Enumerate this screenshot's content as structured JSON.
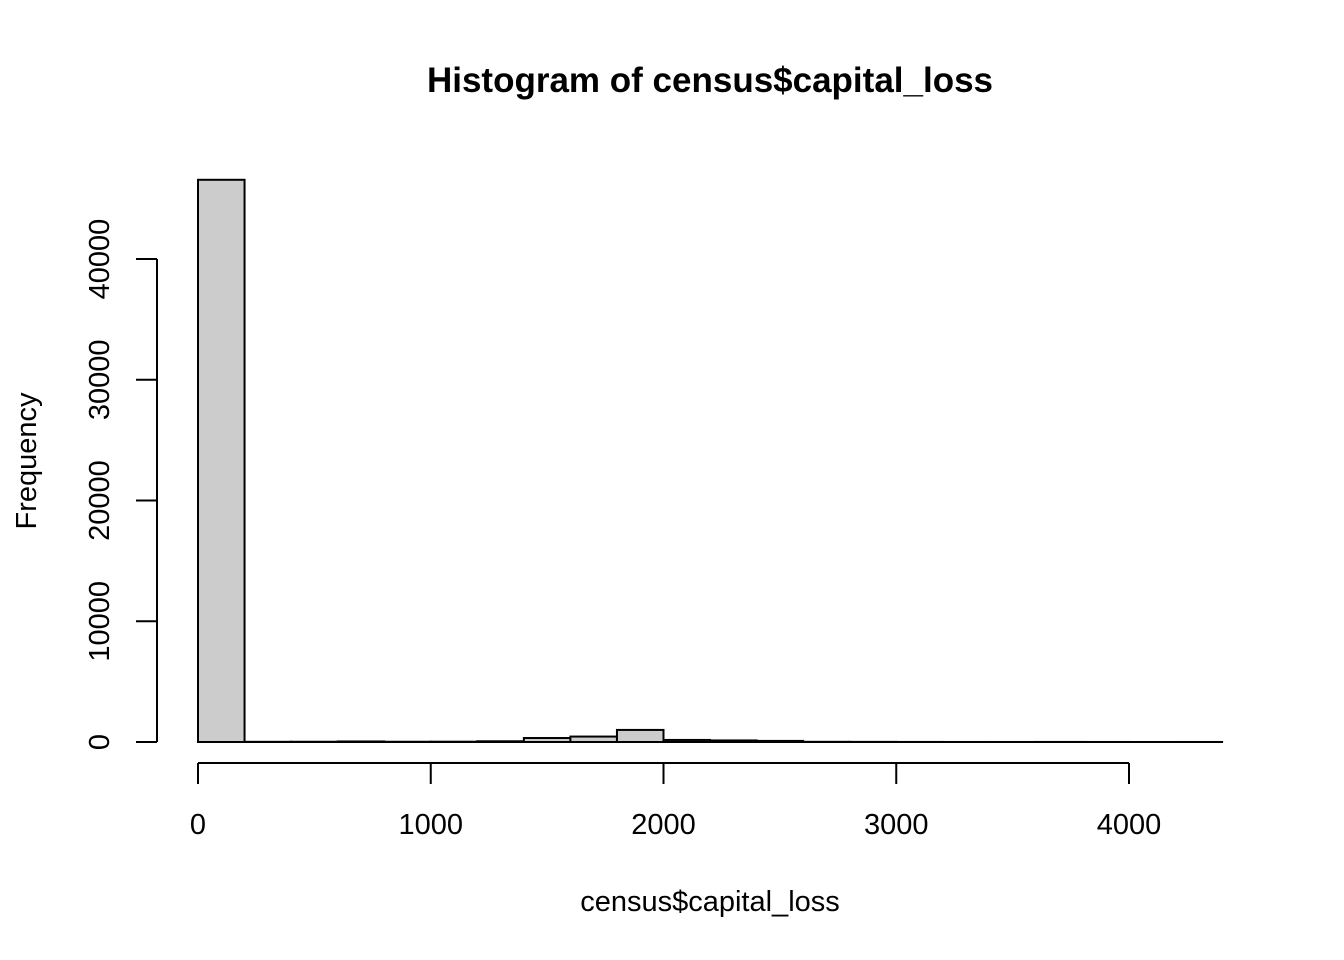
{
  "chart_data": {
    "type": "bar",
    "title": "Histogram of census$capital_loss",
    "xlabel": "census$capital_loss",
    "ylabel": "Frequency",
    "bar_fill": "#cccccc",
    "bar_stroke": "#000000",
    "bin_width": 200,
    "bins": [
      {
        "start": 0,
        "end": 200,
        "count": 46560
      },
      {
        "start": 200,
        "end": 400,
        "count": 15
      },
      {
        "start": 400,
        "end": 600,
        "count": 20
      },
      {
        "start": 600,
        "end": 800,
        "count": 45
      },
      {
        "start": 800,
        "end": 1000,
        "count": 20
      },
      {
        "start": 1000,
        "end": 1200,
        "count": 25
      },
      {
        "start": 1200,
        "end": 1400,
        "count": 60
      },
      {
        "start": 1400,
        "end": 1600,
        "count": 330
      },
      {
        "start": 1600,
        "end": 1800,
        "count": 450
      },
      {
        "start": 1800,
        "end": 2000,
        "count": 1000
      },
      {
        "start": 2000,
        "end": 2200,
        "count": 170
      },
      {
        "start": 2200,
        "end": 2400,
        "count": 130
      },
      {
        "start": 2400,
        "end": 2600,
        "count": 90
      },
      {
        "start": 2600,
        "end": 2800,
        "count": 15
      },
      {
        "start": 2800,
        "end": 3000,
        "count": 10
      },
      {
        "start": 3000,
        "end": 3200,
        "count": 5
      },
      {
        "start": 3200,
        "end": 3400,
        "count": 3
      },
      {
        "start": 3400,
        "end": 3600,
        "count": 2
      },
      {
        "start": 3600,
        "end": 3800,
        "count": 5
      },
      {
        "start": 3800,
        "end": 4000,
        "count": 3
      },
      {
        "start": 4000,
        "end": 4200,
        "count": 1
      },
      {
        "start": 4200,
        "end": 4400,
        "count": 2
      }
    ],
    "xlim": [
      0,
      4400
    ],
    "ylim": [
      0,
      46560
    ],
    "x_ticks": [
      0,
      1000,
      2000,
      3000,
      4000
    ],
    "y_ticks": [
      0,
      10000,
      20000,
      30000,
      40000
    ],
    "grid": false,
    "legend": "none"
  }
}
